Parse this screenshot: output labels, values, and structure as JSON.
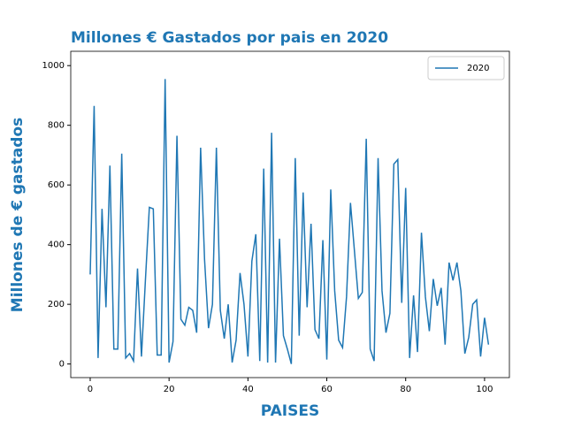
{
  "chart_data": {
    "type": "line",
    "title": "Millones € Gastados por pais en 2020",
    "xlabel": "PAISES",
    "ylabel": "Millones de € gastados",
    "x": [
      0,
      1,
      2,
      3,
      4,
      5,
      6,
      7,
      8,
      9,
      10,
      11,
      12,
      13,
      14,
      15,
      16,
      17,
      18,
      19,
      20,
      21,
      22,
      23,
      24,
      25,
      26,
      27,
      28,
      29,
      30,
      31,
      32,
      33,
      34,
      35,
      36,
      37,
      38,
      39,
      40,
      41,
      42,
      43,
      44,
      45,
      46,
      47,
      48,
      49,
      50,
      51,
      52,
      53,
      54,
      55,
      56,
      57,
      58,
      59,
      60,
      61,
      62,
      63,
      64,
      65,
      66,
      67,
      68,
      69,
      70,
      71,
      72,
      73,
      74,
      75,
      76,
      77,
      78,
      79,
      80,
      81,
      82,
      83,
      84,
      85,
      86,
      87,
      88,
      89,
      90,
      91,
      92,
      93,
      94,
      95,
      96,
      97,
      98,
      99,
      100,
      101
    ],
    "series": [
      {
        "name": "2020",
        "color": "#1f77b4",
        "values": [
          300,
          865,
          20,
          520,
          190,
          665,
          50,
          50,
          705,
          20,
          35,
          10,
          320,
          25,
          280,
          525,
          520,
          30,
          30,
          955,
          5,
          75,
          765,
          150,
          130,
          190,
          180,
          105,
          725,
          350,
          120,
          200,
          725,
          180,
          85,
          200,
          5,
          80,
          305,
          200,
          25,
          345,
          435,
          10,
          655,
          5,
          775,
          5,
          420,
          95,
          50,
          0,
          690,
          95,
          575,
          190,
          470,
          115,
          85,
          415,
          15,
          585,
          245,
          80,
          55,
          225,
          540,
          380,
          220,
          240,
          755,
          50,
          10,
          690,
          245,
          105,
          170,
          670,
          685,
          205,
          590,
          20,
          230,
          40,
          440,
          225,
          110,
          285,
          195,
          255,
          65,
          340,
          280,
          340,
          245,
          35,
          90,
          200,
          215,
          25,
          155,
          65
        ]
      }
    ],
    "xlim": [
      -4.93,
      106.3
    ],
    "ylim": [
      -45.6,
      1048
    ],
    "xticks": [
      0,
      20,
      40,
      60,
      80,
      100
    ],
    "yticks": [
      0,
      200,
      400,
      600,
      800,
      1000
    ],
    "legend": "upper right"
  }
}
